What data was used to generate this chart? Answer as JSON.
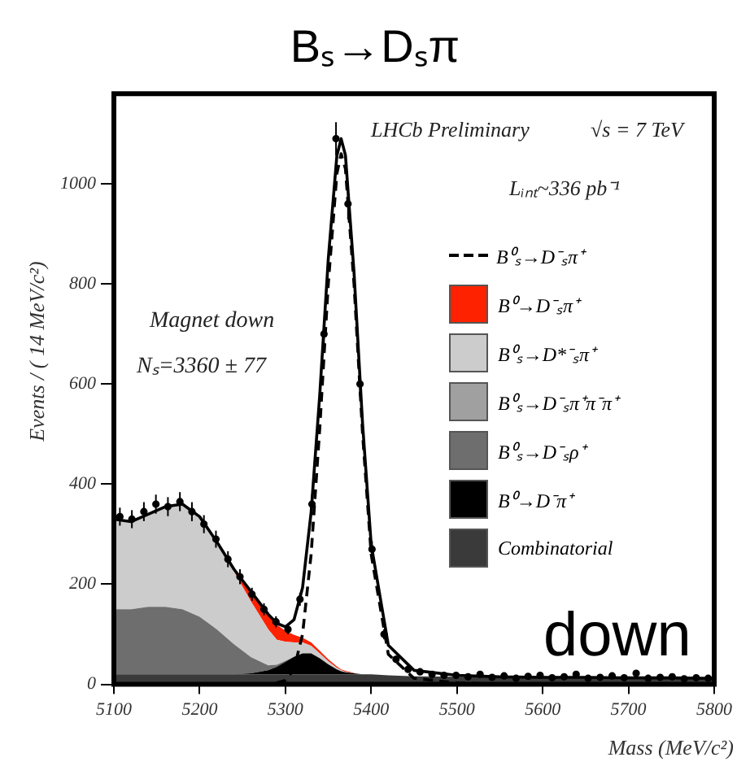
{
  "chart_data": {
    "type": "area",
    "title": "Bₛ→Dₛπ",
    "xlabel": "Mass (MeV/c²)",
    "ylabel": "Events / ( 14 MeV/c²)",
    "annotations": [
      "LHCb Preliminary",
      "√s = 7 TeV",
      "Lᵢₙₜ~336 pb⁻¹",
      "Magnet down",
      "Nₛ=3360 ± 77",
      "down"
    ],
    "x": [
      5100,
      5120,
      5140,
      5160,
      5180,
      5200,
      5220,
      5240,
      5260,
      5280,
      5290,
      5300,
      5310,
      5320,
      5330,
      5340,
      5350,
      5360,
      5365,
      5370,
      5380,
      5390,
      5400,
      5420,
      5450,
      5500,
      5550,
      5600,
      5650,
      5700,
      5750,
      5800
    ],
    "xlim": [
      5100,
      5800
    ],
    "xticks": [
      5100,
      5200,
      5300,
      5400,
      5500,
      5600,
      5700,
      5800
    ],
    "ylim": [
      0,
      1180
    ],
    "yticks": [
      0,
      200,
      400,
      600,
      800,
      1000
    ],
    "stacked": true,
    "legend": "right",
    "series": [
      {
        "name": "Combinatorial",
        "color": "#3a3a3a",
        "values": [
          20,
          20,
          20,
          20,
          20,
          20,
          20,
          20,
          20,
          20,
          20,
          20,
          20,
          20,
          20,
          20,
          20,
          20,
          20,
          20,
          20,
          20,
          20,
          18,
          16,
          15,
          15,
          14,
          14,
          13,
          13,
          12
        ]
      },
      {
        "name": "B⁰→D⁻π⁺",
        "color": "#000000",
        "values": [
          0,
          0,
          0,
          0,
          0,
          0,
          0,
          0,
          2,
          8,
          15,
          25,
          35,
          42,
          42,
          32,
          20,
          10,
          6,
          4,
          2,
          0,
          0,
          0,
          0,
          0,
          0,
          0,
          0,
          0,
          0,
          0
        ]
      },
      {
        "name": "B⁰ₛ→D⁻ₛρ⁺",
        "color": "#6e6e6e",
        "values": [
          130,
          130,
          135,
          135,
          130,
          115,
          90,
          60,
          32,
          10,
          4,
          2,
          0,
          0,
          0,
          0,
          0,
          0,
          0,
          0,
          0,
          0,
          0,
          0,
          0,
          0,
          0,
          0,
          0,
          0,
          0,
          0
        ]
      },
      {
        "name": "B⁰ₛ→D⁻ₛπ⁺π⁻π⁺",
        "color": "#a0a0a0",
        "values": [
          null,
          null,
          null,
          null,
          null,
          null,
          null,
          null,
          null,
          null,
          null,
          null,
          null,
          null,
          null,
          null,
          null,
          null,
          null,
          null,
          null,
          null,
          null,
          null,
          null,
          null,
          null,
          null,
          null,
          null,
          null,
          null
        ]
      },
      {
        "name": "B⁰ₛ→D*⁻ₛπ⁺",
        "color": "#cccccc",
        "values": [
          180,
          175,
          185,
          200,
          210,
          200,
          175,
          145,
          111,
          72,
          50,
          38,
          29,
          22,
          15,
          10,
          6,
          3,
          2,
          1,
          0,
          0,
          0,
          0,
          0,
          0,
          0,
          0,
          0,
          0,
          0,
          0
        ]
      },
      {
        "name": "B⁰→D⁻ₛπ⁺",
        "color": "#ff2200",
        "values": [
          null,
          null,
          null,
          null,
          null,
          null,
          null,
          5,
          20,
          30,
          30,
          22,
          15,
          9,
          7,
          5,
          4,
          3,
          2,
          2,
          1,
          null,
          null,
          null,
          null,
          null,
          null,
          null,
          null,
          null,
          null,
          null
        ]
      },
      {
        "name": "B⁰ₛ→D⁻ₛπ⁺",
        "type": "line",
        "line_style": "dashed",
        "color": "#000000",
        "values": [
          0,
          0,
          0,
          0,
          0,
          0,
          0,
          0,
          0,
          0,
          3,
          8,
          30,
          100,
          260,
          510,
          800,
          1020,
          1060,
          1030,
          800,
          500,
          260,
          60,
          12,
          3,
          0,
          0,
          0,
          0,
          0,
          0
        ]
      },
      {
        "type": "line",
        "line_style": "solid",
        "color": "#000000",
        "values": [
          330,
          325,
          340,
          355,
          360,
          335,
          285,
          230,
          185,
          140,
          122,
          115,
          129,
          193,
          344,
          577,
          850,
          1056,
          1090,
          1057,
          823,
          520,
          280,
          78,
          28,
          18,
          15,
          14,
          14,
          13,
          13,
          12
        ]
      },
      {
        "type": "scatter",
        "marker": "circle",
        "color": "#000000",
        "x": [
          5107,
          5121,
          5135,
          5149,
          5163,
          5177,
          5191,
          5205,
          5219,
          5233,
          5247,
          5261,
          5275,
          5289,
          5303,
          5317,
          5331,
          5345,
          5359,
          5373,
          5387,
          5401,
          5415,
          5429,
          5443,
          5457,
          5471,
          5485,
          5499,
          5513,
          5527,
          5541,
          5555,
          5569,
          5583,
          5597,
          5611,
          5625,
          5639,
          5653,
          5667,
          5681,
          5695,
          5709,
          5723,
          5737,
          5751,
          5765,
          5779,
          5793
        ],
        "values": [
          335,
          330,
          345,
          360,
          355,
          365,
          345,
          320,
          290,
          250,
          215,
          180,
          150,
          125,
          110,
          170,
          360,
          700,
          1090,
          960,
          600,
          270,
          100,
          50,
          30,
          25,
          20,
          18,
          18,
          15,
          20,
          14,
          17,
          12,
          16,
          18,
          13,
          15,
          20,
          12,
          14,
          17,
          13,
          22,
          12,
          14,
          15,
          11,
          13,
          12
        ],
        "errors": [
          18,
          18,
          19,
          19,
          19,
          19,
          19,
          18,
          17,
          16,
          15,
          13,
          12,
          11,
          10,
          13,
          19,
          26,
          33,
          31,
          24,
          16,
          10,
          7,
          5,
          5,
          4,
          4,
          4,
          4,
          4,
          4,
          4,
          3,
          4,
          4,
          4,
          4,
          4,
          3,
          4,
          4,
          4,
          5,
          3,
          4,
          4,
          3,
          4,
          3
        ]
      }
    ]
  }
}
